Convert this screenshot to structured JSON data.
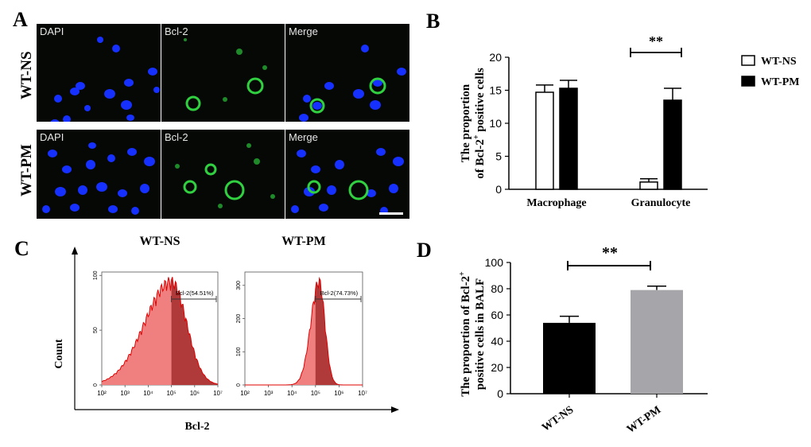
{
  "panel_letters": {
    "a": "A",
    "b": "B",
    "c": "C",
    "d": "D"
  },
  "panel_a": {
    "rows": [
      {
        "label": "WT-NS",
        "tiles": [
          "DAPI",
          "Bcl-2",
          "Merge"
        ]
      },
      {
        "label": "WT-PM",
        "tiles": [
          "DAPI",
          "Bcl-2",
          "Merge"
        ]
      }
    ],
    "colors": {
      "dapi": "#1630ff",
      "bcl2": "#30d040",
      "background": "#050805"
    }
  },
  "chart_data": [
    {
      "type": "bar",
      "panel": "B",
      "categories": [
        "Macrophage",
        "Granulocyte"
      ],
      "series": [
        {
          "name": "WT-NS",
          "values": [
            14.7,
            1.1
          ],
          "errors": [
            1.1,
            0.5
          ],
          "color": "#ffffff"
        },
        {
          "name": "WT-PM",
          "values": [
            15.3,
            13.5
          ],
          "errors": [
            1.2,
            1.8
          ],
          "color": "#000000"
        }
      ],
      "ylabel_line1": "The proportion",
      "ylabel_line2": "of Bcl-2",
      "ylabel_sup": "+",
      "ylabel_line2_rest": " positive cells",
      "ylim": [
        0,
        20
      ],
      "yticks": [
        0,
        5,
        10,
        15,
        20
      ],
      "significance": {
        "label": "**",
        "category": "Granulocyte"
      },
      "legend_position": "right"
    },
    {
      "type": "area",
      "panel": "C",
      "xlabel": "Bcl-2",
      "ylabel": "Count",
      "plots": [
        {
          "title": "WT-NS",
          "gate_label": "Bcl-2(54.51%)",
          "yticks": [
            0,
            50,
            100
          ],
          "ylim": [
            0,
            100
          ]
        },
        {
          "title": "WT-PM",
          "gate_label": "Bcl-2(74.73%)",
          "yticks": [
            0,
            100,
            200,
            300
          ],
          "ylim": [
            0,
            330
          ]
        }
      ],
      "xtick_labels": [
        "10²",
        "10³",
        "10⁴",
        "10⁵",
        "10⁶",
        "10⁷"
      ],
      "fill_color": "#f08080",
      "gate_fill_color": "#b03a3a",
      "line_color": "#e00000"
    },
    {
      "type": "bar",
      "panel": "D",
      "categories": [
        "WT-NS",
        "WT-PM"
      ],
      "values": [
        54,
        79
      ],
      "errors": [
        5,
        3
      ],
      "colors": [
        "#000000",
        "#a6a6aa"
      ],
      "ylabel_line1": "The proportion of Bcl-2",
      "ylabel_sup": "+",
      "ylabel_line2": "positive cells in BALF",
      "ylim": [
        0,
        100
      ],
      "yticks": [
        0,
        20,
        40,
        60,
        80,
        100
      ],
      "significance": {
        "label": "**"
      }
    }
  ]
}
